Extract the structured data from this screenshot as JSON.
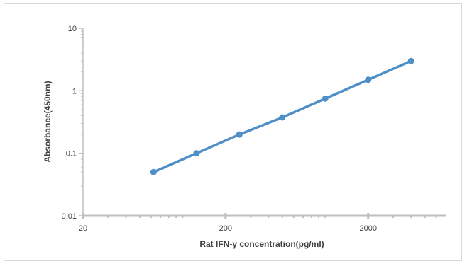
{
  "chart_data": {
    "type": "line",
    "xlabel": "Rat IFN-γ concentration(pg/ml)",
    "ylabel": "Absorbance(450nm)",
    "x_scale": "log",
    "y_scale": "log",
    "xlim": [
      20,
      7000
    ],
    "ylim": [
      0.01,
      10
    ],
    "x_tick_values": [
      20,
      200,
      2000
    ],
    "x_tick_labels": [
      "20",
      "200",
      "2000"
    ],
    "y_tick_values": [
      0.01,
      0.1,
      1,
      10
    ],
    "y_tick_labels": [
      "0.01",
      "0.1",
      "1",
      "10"
    ],
    "grid": false,
    "legend": "none",
    "series": [
      {
        "x": [
          62.5,
          125,
          250,
          500,
          1000,
          2000,
          4000
        ],
        "y": [
          0.05,
          0.1,
          0.2,
          0.375,
          0.75,
          1.5,
          3.0
        ],
        "color": "#4f8fc7",
        "marker": "circle"
      }
    ]
  },
  "colors": {
    "axis": "#bfbfbf",
    "frame": "#d9d9d9",
    "text": "#404040"
  }
}
